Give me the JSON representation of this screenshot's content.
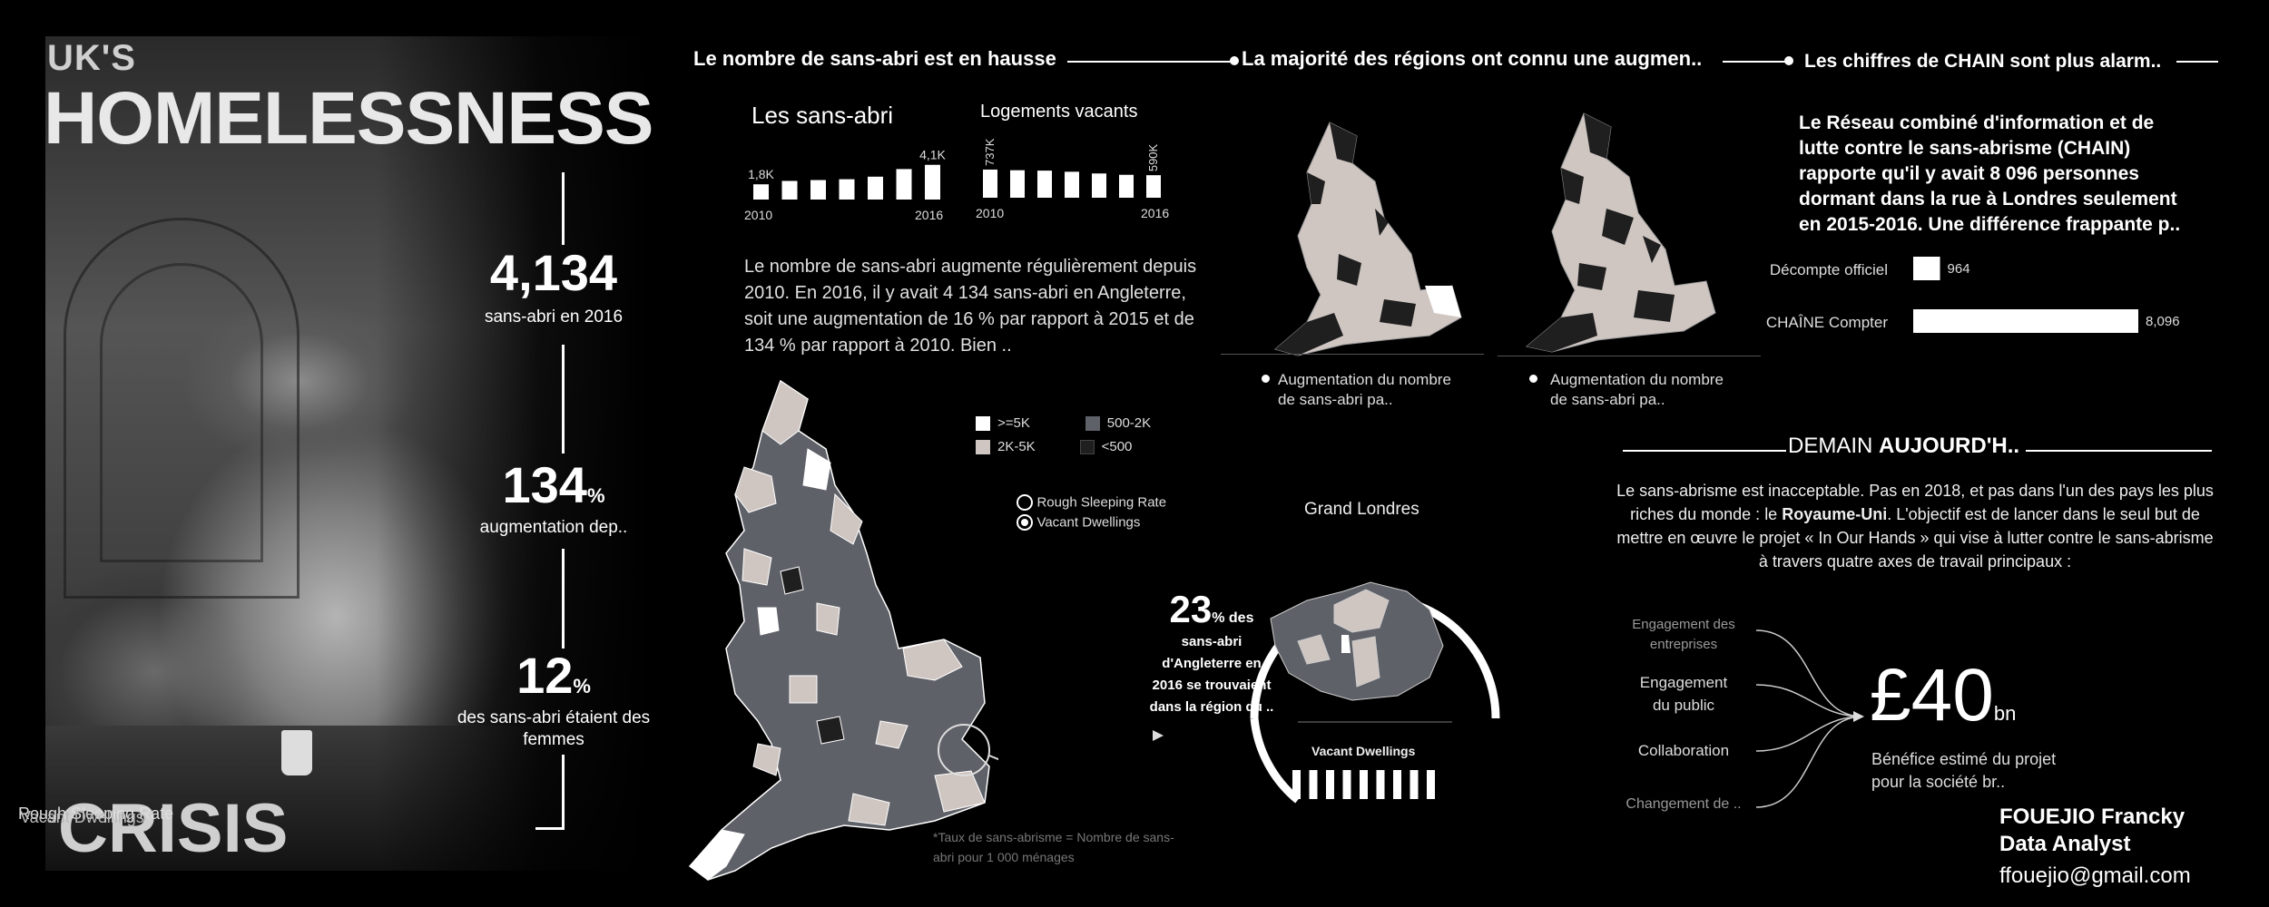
{
  "hero": {
    "title_top": "UK'S",
    "title_main": "HOMELESSNESS",
    "title_bottom": "CRISIS",
    "overlap_legend_a": "Rough Sleeping Rate",
    "overlap_legend_b": "Vacant Dwellings"
  },
  "stats": [
    {
      "value": "4,134",
      "suffix": "",
      "label": "sans-abri en 2016"
    },
    {
      "value": "134",
      "suffix": "%",
      "label": "augmentation dep.."
    },
    {
      "value": "12",
      "suffix": "%",
      "label": "des sans-abri étaient des femmes"
    }
  ],
  "headers": {
    "h1": "Le nombre de sans-abri est en hausse",
    "h2": "La majorité des régions ont connu une augmen..",
    "h3": "Les chiffres de CHAIN sont plus alarm.."
  },
  "homeless_chart": {
    "title": "Les sans-abri",
    "first_label": "1,8K",
    "last_label": "4,1K",
    "x_start": "2010",
    "x_end": "2016"
  },
  "vacant_chart": {
    "title": "Logements vacants",
    "first_label": "737K",
    "last_label": "590K",
    "x_start": "2010",
    "x_end": "2016"
  },
  "chart_data": [
    {
      "type": "bar",
      "title": "Les sans-abri",
      "categories": [
        "2010",
        "2011",
        "2012",
        "2013",
        "2014",
        "2015",
        "2016"
      ],
      "values": [
        1.8,
        2.2,
        2.3,
        2.4,
        2.7,
        3.6,
        4.1
      ],
      "unit": "K",
      "data_labels": [
        "1,8K",
        "",
        "",
        "",
        "",
        "",
        "4,1K"
      ]
    },
    {
      "type": "bar",
      "title": "Logements vacants",
      "categories": [
        "2010",
        "2011",
        "2012",
        "2013",
        "2014",
        "2015",
        "2016"
      ],
      "values": [
        737,
        720,
        710,
        680,
        635,
        600,
        590
      ],
      "unit": "K",
      "data_labels": [
        "737K",
        "",
        "",
        "",
        "",
        "",
        "590K"
      ]
    },
    {
      "type": "bar",
      "title": "",
      "categories": [
        "Décompte officiel",
        "CHAÎNE Compter"
      ],
      "values": [
        964,
        8096
      ],
      "data_labels": [
        "964",
        "8,096"
      ]
    }
  ],
  "paragraph": "Le nombre de sans-abri augmente régulièrement depuis 2010. En 2016, il y avait 4 134 sans-abri en Angleterre, soit une augmentation de 16 % par rapport à 2015 et de 134 % par rapport à 2010. Bien ..",
  "map_legend": {
    "items": [
      {
        "label": ">=5K",
        "color": "#ffffff"
      },
      {
        "label": "500-2K",
        "color": "#5f6168"
      },
      {
        "label": "2K-5K",
        "color": "#cfc6c2"
      },
      {
        "label": "<500",
        "color": "#1f1f1f"
      }
    ],
    "toggle_a": "Rough Sleeping Rate",
    "toggle_b": "Vacant Dwellings"
  },
  "map_captions": {
    "left": "Augmentation du nombre de sans-abri pa..",
    "right": "Augmentation du nombre de sans-abri pa.."
  },
  "london": {
    "title": "Grand Londres",
    "pct_value": "23",
    "pct_suffix": "% des",
    "pct_text": "sans-abri d'Angleterre en 2016 se trouvaient dans la région du ..",
    "caption": "Vacant Dwellings",
    "bars_count": 9
  },
  "footnote": "*Taux de sans-abrisme = Nombre de sans-abri pour 1 000 ménages",
  "chain": {
    "text": "Le Réseau combiné d'information et de lutte contre le sans-abrisme (CHAIN) rapporte qu'il y avait 8 096 personnes dormant dans la rue à Londres seulement en 2015-2016. Une différence frappante p..",
    "rows": [
      {
        "label": "Décompte officiel",
        "value": "964"
      },
      {
        "label": "CHAÎNE Compter",
        "value": "8,096"
      }
    ]
  },
  "future": {
    "header_a": "DEMAIN",
    "header_b": "AUJOURD'H..",
    "text_a": "Le sans-abrisme est inacceptable. Pas en 2018, et pas dans l'un des pays les plus riches du monde : le ",
    "text_bold": "Royaume-Uni",
    "text_b": ". L'objectif est de lancer dans le seul but de mettre en œuvre le projet « In Our Hands » qui vise à lutter contre le sans-abrisme à travers quatre axes de travail principaux :",
    "axes": [
      "Engagement des entreprises",
      "Engagement du public",
      "Collaboration",
      "Changement de .."
    ],
    "amount": "£40",
    "amount_unit": "bn",
    "benefit": "Bénéfice estimé du projet pour la société br.."
  },
  "signature": {
    "name": "FOUEJIO Francky",
    "role": "Data Analyst",
    "email": "ffouejio@gmail.com"
  },
  "colors": {
    "background": "#000000",
    "map_dark": "#5f6168",
    "map_light": "#cfc6c2",
    "map_white": "#ffffff",
    "map_black": "#1f1f1f"
  }
}
